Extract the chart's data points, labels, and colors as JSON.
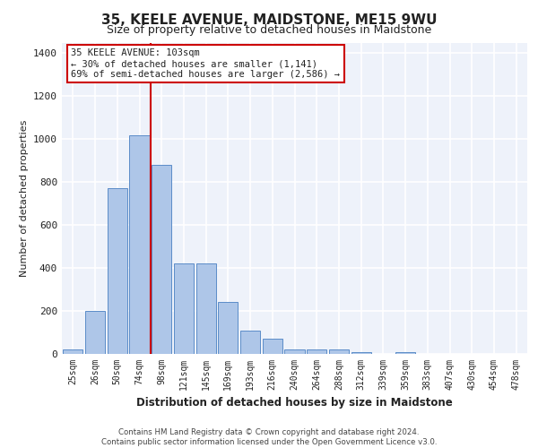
{
  "title_line1": "35, KEELE AVENUE, MAIDSTONE, ME15 9WU",
  "title_line2": "Size of property relative to detached houses in Maidstone",
  "xlabel": "Distribution of detached houses by size in Maidstone",
  "ylabel": "Number of detached properties",
  "categories": [
    "25sqm",
    "26sqm",
    "50sqm",
    "74sqm",
    "98sqm",
    "121sqm",
    "145sqm",
    "169sqm",
    "193sqm",
    "216sqm",
    "240sqm",
    "264sqm",
    "288sqm",
    "312sqm",
    "339sqm",
    "359sqm",
    "383sqm",
    "407sqm",
    "430sqm",
    "454sqm",
    "478sqm"
  ],
  "values": [
    20,
    200,
    770,
    1020,
    880,
    420,
    420,
    240,
    110,
    70,
    20,
    20,
    20,
    10,
    0,
    10,
    0,
    0,
    0,
    0,
    0
  ],
  "bar_color": "#aec6e8",
  "bar_edge_color": "#5b8cc8",
  "vline_color": "#cc0000",
  "vline_index": 3.5,
  "annotation_text": "35 KEELE AVENUE: 103sqm\n← 30% of detached houses are smaller (1,141)\n69% of semi-detached houses are larger (2,586) →",
  "ylim": [
    0,
    1450
  ],
  "yticks": [
    0,
    200,
    400,
    600,
    800,
    1000,
    1200,
    1400
  ],
  "background_color": "#eef2fa",
  "grid_color": "#ffffff",
  "footer_line1": "Contains HM Land Registry data © Crown copyright and database right 2024.",
  "footer_line2": "Contains public sector information licensed under the Open Government Licence v3.0."
}
